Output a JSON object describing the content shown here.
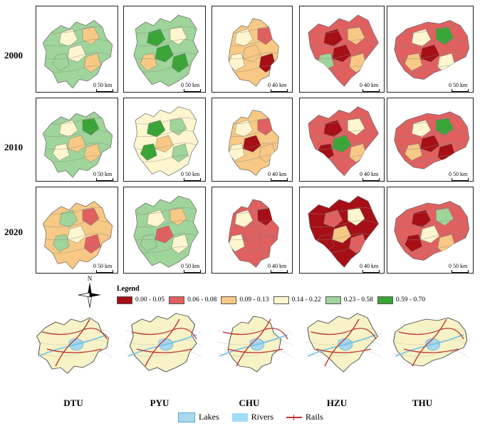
{
  "years": [
    "2000",
    "2010",
    "2020"
  ],
  "cities": [
    "DTU",
    "PYU",
    "CHU",
    "HZU",
    "THU"
  ],
  "legend": {
    "title": "Legend",
    "classes": [
      {
        "label": "0.00 - 0.05",
        "color": "#a50f15"
      },
      {
        "label": "0.06 - 0.08",
        "color": "#e06060"
      },
      {
        "label": "0.09 - 0.13",
        "color": "#f7c985"
      },
      {
        "label": "0.14 - 0.22",
        "color": "#fff6cf"
      },
      {
        "label": "0.23 - 0.58",
        "color": "#9fd49a"
      },
      {
        "label": "0.59 - 0.70",
        "color": "#3aa537"
      }
    ]
  },
  "scale_bars": {
    "DTU": "0   50 km",
    "PYU": "0   50 km",
    "CHU": "0   40 km",
    "HZU": "0   40 km",
    "THU": "0   50 km"
  },
  "compass_label": "N",
  "map_colors": {
    "2000": {
      "DTU": {
        "base": "#9fd49a",
        "accents": [
          "#fff6cf",
          "#f7c985",
          "#fff6cf",
          "#9fd49a",
          "#f7c985"
        ]
      },
      "PYU": {
        "base": "#9fd49a",
        "accents": [
          "#3aa537",
          "#fff6cf",
          "#3aa537",
          "#f7c985",
          "#3aa537"
        ]
      },
      "CHU": {
        "base": "#f7c985",
        "accents": [
          "#fff6cf",
          "#e06060",
          "#f7c985",
          "#fff6cf",
          "#a50f15"
        ]
      },
      "HZU": {
        "base": "#e06060",
        "accents": [
          "#a50f15",
          "#f7c985",
          "#a50f15",
          "#9fd49a",
          "#f7c985"
        ]
      },
      "THU": {
        "base": "#e06060",
        "accents": [
          "#fff6cf",
          "#3aa537",
          "#a50f15",
          "#f7c985",
          "#fff6cf"
        ]
      }
    },
    "2010": {
      "DTU": {
        "base": "#9fd49a",
        "accents": [
          "#fff6cf",
          "#3aa537",
          "#f7c985",
          "#fff6cf",
          "#f7c985"
        ]
      },
      "PYU": {
        "base": "#fff6cf",
        "accents": [
          "#3aa537",
          "#9fd49a",
          "#f7c985",
          "#3aa537",
          "#9fd49a"
        ]
      },
      "CHU": {
        "base": "#f7c985",
        "accents": [
          "#fff6cf",
          "#e06060",
          "#a50f15",
          "#fff6cf",
          "#f7c985"
        ]
      },
      "HZU": {
        "base": "#e06060",
        "accents": [
          "#a50f15",
          "#fff6cf",
          "#3aa537",
          "#a50f15",
          "#f7c985"
        ]
      },
      "THU": {
        "base": "#e06060",
        "accents": [
          "#fff6cf",
          "#3aa537",
          "#a50f15",
          "#f7c985",
          "#a50f15"
        ]
      }
    },
    "2020": {
      "DTU": {
        "base": "#f7c985",
        "accents": [
          "#9fd49a",
          "#e06060",
          "#fff6cf",
          "#9fd49a",
          "#e06060"
        ]
      },
      "PYU": {
        "base": "#9fd49a",
        "accents": [
          "#fff6cf",
          "#f7c985",
          "#e06060",
          "#9fd49a",
          "#fff6cf"
        ]
      },
      "CHU": {
        "base": "#e06060",
        "accents": [
          "#fff6cf",
          "#a50f15",
          "#e06060",
          "#fff6cf",
          "#e06060"
        ]
      },
      "HZU": {
        "base": "#a50f15",
        "accents": [
          "#e06060",
          "#fff6cf",
          "#f7c985",
          "#a50f15",
          "#e06060"
        ]
      },
      "THU": {
        "base": "#e06060",
        "accents": [
          "#a50f15",
          "#9fd49a",
          "#fff6cf",
          "#a50f15",
          "#f7c985"
        ]
      }
    }
  },
  "feature_legend": {
    "lakes": "Lakes",
    "rivers": "Rivers",
    "rails": "Rails"
  },
  "feature_colors": {
    "base": "#f7f3c6",
    "lake": "#a9d8ee",
    "river": "#6cc4ec",
    "rail": "#c0302a"
  }
}
